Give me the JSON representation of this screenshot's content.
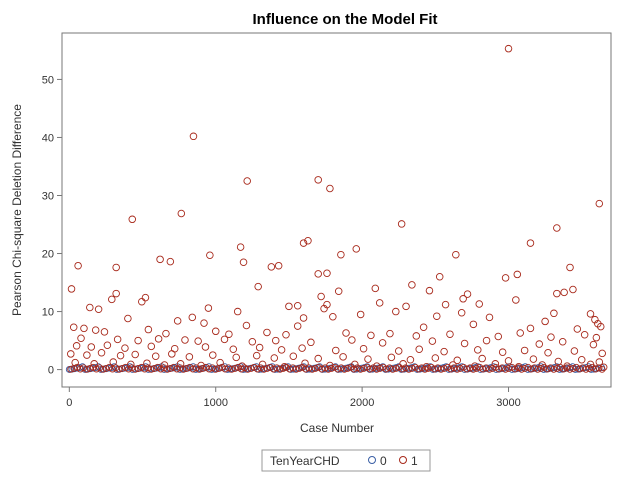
{
  "chart_data": {
    "type": "scatter",
    "title": "Influence on the Model Fit",
    "xlabel": "Case Number",
    "ylabel": "Pearson Chi-square Deletion Difference",
    "xlim": [
      -50,
      3700
    ],
    "ylim": [
      -3,
      58
    ],
    "x_ticks": [
      "0",
      "1000",
      "2000",
      "3000"
    ],
    "x_tick_values": [
      0,
      1000,
      2000,
      3000
    ],
    "y_ticks": [
      "0",
      "10",
      "20",
      "30",
      "40",
      "50"
    ],
    "y_tick_values": [
      0,
      10,
      20,
      30,
      40,
      50
    ],
    "grid": false,
    "legend": {
      "title": "TenYearCHD",
      "position": "bottom-center"
    },
    "series": [
      {
        "name": "0",
        "color": "#3a5fa5",
        "band": {
          "x_range": [
            0,
            3650
          ],
          "y_values": [
            0.02,
            0.08,
            0.15,
            0.25,
            0.35,
            0.5
          ]
        }
      },
      {
        "name": "1",
        "color": "#a8291b",
        "points": [
          [
            3000,
            55.3
          ],
          [
            848,
            40.2
          ],
          [
            1215,
            32.5
          ],
          [
            1700,
            32.7
          ],
          [
            1780,
            31.2
          ],
          [
            3620,
            28.6
          ],
          [
            765,
            26.9
          ],
          [
            430,
            25.9
          ],
          [
            2270,
            25.1
          ],
          [
            3330,
            24.4
          ],
          [
            1630,
            22.2
          ],
          [
            1600,
            21.8
          ],
          [
            3150,
            21.8
          ],
          [
            1170,
            21.1
          ],
          [
            1960,
            20.8
          ],
          [
            960,
            19.7
          ],
          [
            1855,
            19.8
          ],
          [
            2640,
            19.8
          ],
          [
            620,
            19.0
          ],
          [
            1190,
            18.5
          ],
          [
            690,
            18.6
          ],
          [
            1430,
            17.9
          ],
          [
            60,
            17.9
          ],
          [
            1380,
            17.7
          ],
          [
            320,
            17.6
          ],
          [
            3420,
            17.6
          ],
          [
            1700,
            16.5
          ],
          [
            3060,
            16.4
          ],
          [
            1760,
            16.6
          ],
          [
            2980,
            15.8
          ],
          [
            2530,
            16.0
          ],
          [
            2340,
            14.6
          ],
          [
            1290,
            14.3
          ],
          [
            15,
            13.9
          ],
          [
            2460,
            13.6
          ],
          [
            3440,
            13.8
          ],
          [
            3380,
            13.3
          ],
          [
            1840,
            13.5
          ],
          [
            320,
            13.1
          ],
          [
            520,
            12.4
          ],
          [
            2720,
            13.0
          ],
          [
            2090,
            14.0
          ],
          [
            2690,
            12.2
          ],
          [
            3330,
            13.1
          ],
          [
            1720,
            12.6
          ],
          [
            495,
            11.7
          ],
          [
            290,
            12.1
          ],
          [
            2120,
            11.5
          ],
          [
            2570,
            11.2
          ],
          [
            3050,
            12.0
          ],
          [
            1500,
            10.9
          ],
          [
            1560,
            11.0
          ],
          [
            1760,
            11.2
          ],
          [
            2300,
            10.9
          ],
          [
            2800,
            11.3
          ],
          [
            200,
            10.4
          ],
          [
            140,
            10.7
          ],
          [
            950,
            10.6
          ],
          [
            1150,
            10.0
          ],
          [
            1740,
            10.5
          ],
          [
            2230,
            10.0
          ],
          [
            2680,
            9.8
          ],
          [
            3310,
            9.7
          ],
          [
            3560,
            9.6
          ],
          [
            840,
            9.0
          ],
          [
            2510,
            9.2
          ],
          [
            1990,
            9.5
          ],
          [
            3590,
            8.6
          ],
          [
            1800,
            9.1
          ],
          [
            1600,
            8.9
          ],
          [
            2870,
            9.0
          ],
          [
            400,
            8.8
          ],
          [
            3250,
            8.3
          ],
          [
            3610,
            7.9
          ],
          [
            3630,
            7.4
          ],
          [
            740,
            8.4
          ],
          [
            920,
            8.0
          ],
          [
            1210,
            7.6
          ],
          [
            1560,
            7.5
          ],
          [
            2420,
            7.3
          ],
          [
            2760,
            7.8
          ],
          [
            3150,
            7.1
          ],
          [
            3470,
            7.0
          ],
          [
            30,
            7.3
          ],
          [
            100,
            7.1
          ],
          [
            180,
            6.8
          ],
          [
            240,
            6.5
          ],
          [
            540,
            6.9
          ],
          [
            660,
            6.2
          ],
          [
            1000,
            6.6
          ],
          [
            1090,
            6.1
          ],
          [
            1350,
            6.4
          ],
          [
            1480,
            6.0
          ],
          [
            1890,
            6.3
          ],
          [
            2060,
            5.9
          ],
          [
            2190,
            6.2
          ],
          [
            2370,
            5.8
          ],
          [
            2600,
            6.1
          ],
          [
            2930,
            5.7
          ],
          [
            3080,
            6.3
          ],
          [
            3290,
            5.6
          ],
          [
            3520,
            6.0
          ],
          [
            3600,
            5.5
          ],
          [
            80,
            5.4
          ],
          [
            330,
            5.2
          ],
          [
            470,
            5.0
          ],
          [
            610,
            5.3
          ],
          [
            790,
            5.1
          ],
          [
            880,
            4.9
          ],
          [
            1060,
            5.2
          ],
          [
            1250,
            4.8
          ],
          [
            1410,
            5.0
          ],
          [
            1650,
            4.7
          ],
          [
            1930,
            5.1
          ],
          [
            2140,
            4.6
          ],
          [
            2480,
            4.9
          ],
          [
            2700,
            4.5
          ],
          [
            2850,
            5.0
          ],
          [
            3210,
            4.4
          ],
          [
            3370,
            4.8
          ],
          [
            3580,
            4.3
          ],
          [
            50,
            4.1
          ],
          [
            150,
            3.9
          ],
          [
            260,
            4.2
          ],
          [
            380,
            3.7
          ],
          [
            560,
            4.0
          ],
          [
            720,
            3.6
          ],
          [
            930,
            3.9
          ],
          [
            1120,
            3.5
          ],
          [
            1300,
            3.8
          ],
          [
            1450,
            3.4
          ],
          [
            1590,
            3.7
          ],
          [
            1820,
            3.3
          ],
          [
            2010,
            3.6
          ],
          [
            2250,
            3.2
          ],
          [
            2390,
            3.5
          ],
          [
            2560,
            3.1
          ],
          [
            2790,
            3.4
          ],
          [
            2960,
            3.0
          ],
          [
            3110,
            3.3
          ],
          [
            3270,
            2.9
          ],
          [
            3450,
            3.2
          ],
          [
            3640,
            2.8
          ],
          [
            10,
            2.7
          ],
          [
            120,
            2.5
          ],
          [
            220,
            2.9
          ],
          [
            350,
            2.4
          ],
          [
            450,
            2.6
          ],
          [
            590,
            2.3
          ],
          [
            700,
            2.7
          ],
          [
            820,
            2.2
          ],
          [
            980,
            2.5
          ],
          [
            1140,
            2.1
          ],
          [
            1280,
            2.4
          ],
          [
            1400,
            2.0
          ],
          [
            1530,
            2.3
          ],
          [
            1700,
            1.9
          ],
          [
            1870,
            2.2
          ],
          [
            2040,
            1.8
          ],
          [
            2200,
            2.1
          ],
          [
            2330,
            1.7
          ],
          [
            2500,
            2.0
          ],
          [
            2650,
            1.6
          ],
          [
            2820,
            1.9
          ],
          [
            3000,
            1.5
          ],
          [
            3170,
            1.8
          ],
          [
            3340,
            1.4
          ],
          [
            3500,
            1.7
          ],
          [
            3620,
            1.3
          ],
          [
            40,
            1.2
          ],
          [
            170,
            1.0
          ],
          [
            300,
            1.3
          ],
          [
            420,
            0.9
          ],
          [
            530,
            1.1
          ],
          [
            650,
            0.8
          ],
          [
            760,
            1.0
          ],
          [
            900,
            0.7
          ],
          [
            1030,
            1.2
          ],
          [
            1180,
            0.6
          ],
          [
            1320,
            0.9
          ],
          [
            1470,
            0.5
          ],
          [
            1610,
            1.1
          ],
          [
            1780,
            0.7
          ],
          [
            1950,
            0.9
          ],
          [
            2100,
            0.6
          ],
          [
            2280,
            1.0
          ],
          [
            2440,
            0.5
          ],
          [
            2620,
            0.8
          ],
          [
            2770,
            0.6
          ],
          [
            2910,
            1.0
          ],
          [
            3070,
            0.5
          ],
          [
            3230,
            0.8
          ],
          [
            3400,
            0.6
          ],
          [
            3560,
            0.9
          ],
          [
            3650,
            0.4
          ]
        ]
      }
    ]
  }
}
